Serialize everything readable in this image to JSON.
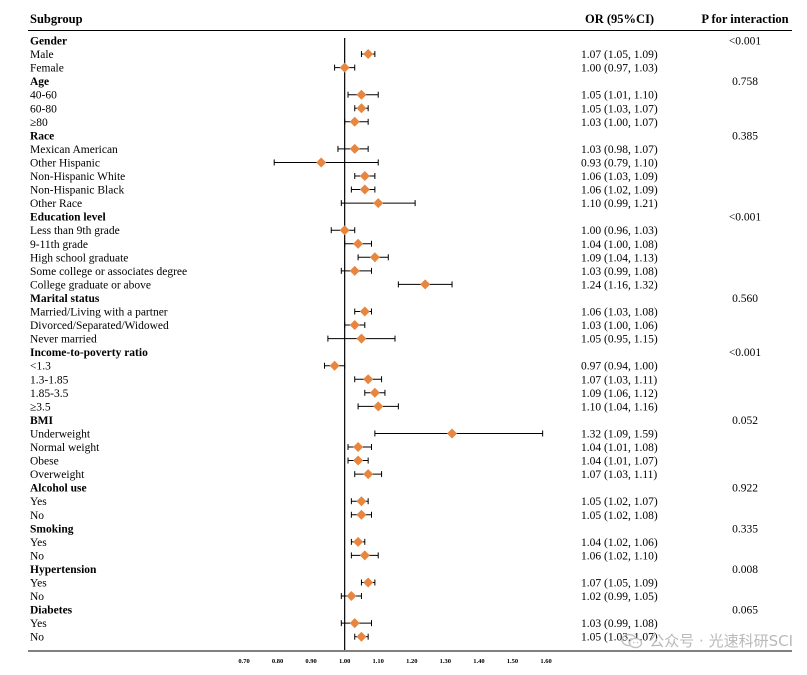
{
  "chart_data": {
    "type": "forest",
    "headers": {
      "subgroup": "Subgroup",
      "or": "OR (95%CI)",
      "p": "P for interaction"
    },
    "reference_line": 1.0,
    "xlim": [
      0.7,
      1.6
    ],
    "xticks": [
      "0.70",
      "0.80",
      "0.90",
      "1.00",
      "1.10",
      "1.20",
      "1.30",
      "1.40",
      "1.50",
      "1.60"
    ],
    "rows": [
      {
        "kind": "group",
        "label": "Gender",
        "p": "<0.001"
      },
      {
        "kind": "item",
        "label": "Male",
        "or": 1.07,
        "lo": 1.05,
        "hi": 1.09,
        "text": "1.07 (1.05, 1.09)"
      },
      {
        "kind": "item",
        "label": "Female",
        "or": 1.0,
        "lo": 0.97,
        "hi": 1.03,
        "text": "1.00 (0.97, 1.03)"
      },
      {
        "kind": "group",
        "label": "Age",
        "p": "0.758"
      },
      {
        "kind": "item",
        "label": "40-60",
        "or": 1.05,
        "lo": 1.01,
        "hi": 1.1,
        "text": "1.05 (1.01, 1.10)"
      },
      {
        "kind": "item",
        "label": "60-80",
        "or": 1.05,
        "lo": 1.03,
        "hi": 1.07,
        "text": "1.05 (1.03, 1.07)"
      },
      {
        "kind": "item",
        "label": "≥80",
        "or": 1.03,
        "lo": 1.0,
        "hi": 1.07,
        "text": "1.03 (1.00, 1.07)"
      },
      {
        "kind": "group",
        "label": "Race",
        "p": "0.385"
      },
      {
        "kind": "item",
        "label": "Mexican American",
        "or": 1.03,
        "lo": 0.98,
        "hi": 1.07,
        "text": "1.03 (0.98, 1.07)"
      },
      {
        "kind": "item",
        "label": "Other Hispanic",
        "or": 0.93,
        "lo": 0.79,
        "hi": 1.1,
        "text": "0.93 (0.79, 1.10)"
      },
      {
        "kind": "item",
        "label": "Non-Hispanic White",
        "or": 1.06,
        "lo": 1.03,
        "hi": 1.09,
        "text": "1.06 (1.03, 1.09)"
      },
      {
        "kind": "item",
        "label": "Non-Hispanic Black",
        "or": 1.06,
        "lo": 1.02,
        "hi": 1.09,
        "text": "1.06 (1.02, 1.09)"
      },
      {
        "kind": "item",
        "label": "Other Race",
        "or": 1.1,
        "lo": 0.99,
        "hi": 1.21,
        "text": "1.10 (0.99, 1.21)"
      },
      {
        "kind": "group",
        "label": "Education level",
        "p": "<0.001"
      },
      {
        "kind": "item",
        "label": "Less than 9th grade",
        "or": 1.0,
        "lo": 0.96,
        "hi": 1.03,
        "text": "1.00 (0.96, 1.03)"
      },
      {
        "kind": "item",
        "label": "9-11th grade",
        "or": 1.04,
        "lo": 1.0,
        "hi": 1.08,
        "text": "1.04 (1.00, 1.08)"
      },
      {
        "kind": "item",
        "label": "High school graduate",
        "or": 1.09,
        "lo": 1.04,
        "hi": 1.13,
        "text": "1.09 (1.04, 1.13)"
      },
      {
        "kind": "item",
        "label": "Some college or associates degree",
        "or": 1.03,
        "lo": 0.99,
        "hi": 1.08,
        "text": "1.03 (0.99, 1.08)"
      },
      {
        "kind": "item",
        "label": "College graduate or above",
        "or": 1.24,
        "lo": 1.16,
        "hi": 1.32,
        "text": "1.24 (1.16, 1.32)"
      },
      {
        "kind": "group",
        "label": "Marital status",
        "p": "0.560"
      },
      {
        "kind": "item",
        "label": "Married/Living with a partner",
        "or": 1.06,
        "lo": 1.03,
        "hi": 1.08,
        "text": "1.06 (1.03, 1.08)"
      },
      {
        "kind": "item",
        "label": "Divorced/Separated/Widowed",
        "or": 1.03,
        "lo": 1.0,
        "hi": 1.06,
        "text": "1.03 (1.00, 1.06)"
      },
      {
        "kind": "item",
        "label": "Never married",
        "or": 1.05,
        "lo": 0.95,
        "hi": 1.15,
        "text": "1.05 (0.95, 1.15)"
      },
      {
        "kind": "group",
        "label": "Income-to-poverty ratio",
        "p": "<0.001"
      },
      {
        "kind": "item",
        "label": "<1.3",
        "or": 0.97,
        "lo": 0.94,
        "hi": 1.0,
        "text": "0.97 (0.94, 1.00)"
      },
      {
        "kind": "item",
        "label": "1.3-1.85",
        "or": 1.07,
        "lo": 1.03,
        "hi": 1.11,
        "text": "1.07 (1.03, 1.11)"
      },
      {
        "kind": "item",
        "label": "1.85-3.5",
        "or": 1.09,
        "lo": 1.06,
        "hi": 1.12,
        "text": "1.09 (1.06, 1.12)"
      },
      {
        "kind": "item",
        "label": "≥3.5",
        "or": 1.1,
        "lo": 1.04,
        "hi": 1.16,
        "text": "1.10 (1.04, 1.16)"
      },
      {
        "kind": "group",
        "label": "BMI",
        "p": "0.052"
      },
      {
        "kind": "item",
        "label": "Underweight",
        "or": 1.32,
        "lo": 1.09,
        "hi": 1.59,
        "text": "1.32 (1.09, 1.59)"
      },
      {
        "kind": "item",
        "label": "Normal weight",
        "or": 1.04,
        "lo": 1.01,
        "hi": 1.08,
        "text": "1.04 (1.01, 1.08)"
      },
      {
        "kind": "item",
        "label": "Obese",
        "or": 1.04,
        "lo": 1.01,
        "hi": 1.07,
        "text": "1.04 (1.01, 1.07)"
      },
      {
        "kind": "item",
        "label": "Overweight",
        "or": 1.07,
        "lo": 1.03,
        "hi": 1.11,
        "text": "1.07 (1.03, 1.11)"
      },
      {
        "kind": "group",
        "label": "Alcohol use",
        "p": "0.922"
      },
      {
        "kind": "item",
        "label": "Yes",
        "or": 1.05,
        "lo": 1.02,
        "hi": 1.07,
        "text": "1.05 (1.02, 1.07)"
      },
      {
        "kind": "item",
        "label": "No",
        "or": 1.05,
        "lo": 1.02,
        "hi": 1.08,
        "text": "1.05 (1.02, 1.08)"
      },
      {
        "kind": "group",
        "label": "Smoking",
        "p": "0.335"
      },
      {
        "kind": "item",
        "label": "Yes",
        "or": 1.04,
        "lo": 1.02,
        "hi": 1.06,
        "text": "1.04 (1.02, 1.06)"
      },
      {
        "kind": "item",
        "label": "No",
        "or": 1.06,
        "lo": 1.02,
        "hi": 1.1,
        "text": "1.06 (1.02, 1.10)"
      },
      {
        "kind": "group",
        "label": "Hypertension",
        "p": "0.008"
      },
      {
        "kind": "item",
        "label": "Yes",
        "or": 1.07,
        "lo": 1.05,
        "hi": 1.09,
        "text": "1.07 (1.05, 1.09)"
      },
      {
        "kind": "item",
        "label": "No",
        "or": 1.02,
        "lo": 0.99,
        "hi": 1.05,
        "text": "1.02 (0.99, 1.05)"
      },
      {
        "kind": "group",
        "label": "Diabetes",
        "p": "0.065"
      },
      {
        "kind": "item",
        "label": "Yes",
        "or": 1.03,
        "lo": 0.99,
        "hi": 1.08,
        "text": "1.03 (0.99, 1.08)"
      },
      {
        "kind": "item",
        "label": "No",
        "or": 1.05,
        "lo": 1.03,
        "hi": 1.07,
        "text": "1.05 (1.03, 1.07)"
      }
    ]
  },
  "colors": {
    "marker": "#e8853f",
    "line": "#000000"
  },
  "watermark": {
    "icon": "wechat-logo-icon",
    "text": "公众号 · 光速科研SCI"
  }
}
